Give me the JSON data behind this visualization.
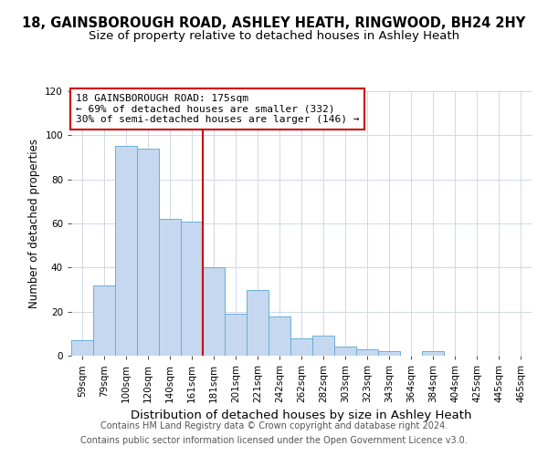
{
  "title": "18, GAINSBOROUGH ROAD, ASHLEY HEATH, RINGWOOD, BH24 2HY",
  "subtitle": "Size of property relative to detached houses in Ashley Heath",
  "xlabel": "Distribution of detached houses by size in Ashley Heath",
  "ylabel": "Number of detached properties",
  "footer_line1": "Contains HM Land Registry data © Crown copyright and database right 2024.",
  "footer_line2": "Contains public sector information licensed under the Open Government Licence v3.0.",
  "annotation_line1": "18 GAINSBOROUGH ROAD: 175sqm",
  "annotation_line2": "← 69% of detached houses are smaller (332)",
  "annotation_line3": "30% of semi-detached houses are larger (146) →",
  "bin_labels": [
    "59sqm",
    "79sqm",
    "100sqm",
    "120sqm",
    "140sqm",
    "161sqm",
    "181sqm",
    "201sqm",
    "221sqm",
    "242sqm",
    "262sqm",
    "282sqm",
    "303sqm",
    "323sqm",
    "343sqm",
    "364sqm",
    "384sqm",
    "404sqm",
    "425sqm",
    "445sqm",
    "465sqm"
  ],
  "bar_values": [
    7,
    32,
    95,
    94,
    62,
    61,
    40,
    19,
    30,
    18,
    8,
    9,
    4,
    3,
    2,
    0,
    2,
    0,
    0,
    0,
    0
  ],
  "bar_color": "#c5d8f0",
  "bar_edge_color": "#6baed6",
  "vline_color": "#cc0000",
  "annotation_box_color": "#cc0000",
  "ylim": [
    0,
    120
  ],
  "yticks": [
    0,
    20,
    40,
    60,
    80,
    100,
    120
  ],
  "background_color": "#ffffff",
  "grid_color": "#d0d8e8",
  "title_fontsize": 10.5,
  "subtitle_fontsize": 9.5,
  "xlabel_fontsize": 9.5,
  "ylabel_fontsize": 8.5,
  "tick_fontsize": 7.5,
  "annotation_fontsize": 8.0,
  "footer_fontsize": 7.0,
  "footer_color": "#555555"
}
